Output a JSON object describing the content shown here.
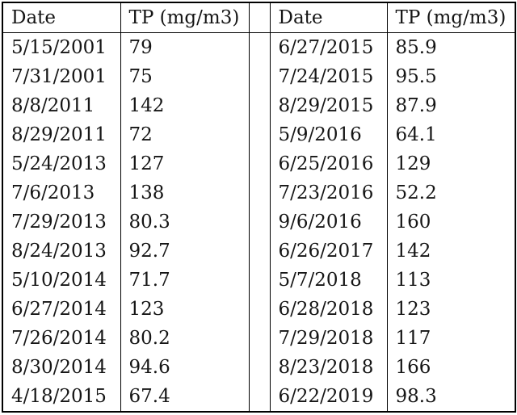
{
  "page": {
    "background_color": "#ffffff",
    "border_color": "#000000",
    "text_color": "#151515"
  },
  "table": {
    "left": {
      "header": {
        "date": "Date",
        "tp": "TP (mg/m3)"
      },
      "rows": [
        {
          "date": "5/15/2001",
          "tp": "79"
        },
        {
          "date": "7/31/2001",
          "tp": "75"
        },
        {
          "date": "8/8/2011",
          "tp": "142"
        },
        {
          "date": "8/29/2011",
          "tp": "72"
        },
        {
          "date": "5/24/2013",
          "tp": "127"
        },
        {
          "date": "7/6/2013",
          "tp": "138"
        },
        {
          "date": "7/29/2013",
          "tp": "80.3"
        },
        {
          "date": "8/24/2013",
          "tp": "92.7"
        },
        {
          "date": "5/10/2014",
          "tp": "71.7"
        },
        {
          "date": "6/27/2014",
          "tp": "123"
        },
        {
          "date": "7/26/2014",
          "tp": "80.2"
        },
        {
          "date": "8/30/2014",
          "tp": "94.6"
        },
        {
          "date": "4/18/2015",
          "tp": "67.4"
        }
      ]
    },
    "right": {
      "header": {
        "date": "Date",
        "tp": "TP (mg/m3)"
      },
      "rows": [
        {
          "date": "6/27/2015",
          "tp": "85.9"
        },
        {
          "date": "7/24/2015",
          "tp": "95.5"
        },
        {
          "date": "8/29/2015",
          "tp": "87.9"
        },
        {
          "date": "5/9/2016",
          "tp": "64.1"
        },
        {
          "date": "6/25/2016",
          "tp": "129"
        },
        {
          "date": "7/23/2016",
          "tp": "52.2"
        },
        {
          "date": "9/6/2016",
          "tp": "160"
        },
        {
          "date": "6/26/2017",
          "tp": "142"
        },
        {
          "date": "5/7/2018",
          "tp": "113"
        },
        {
          "date": "6/28/2018",
          "tp": "123"
        },
        {
          "date": "7/29/2018",
          "tp": "117"
        },
        {
          "date": "8/23/2018",
          "tp": "166"
        },
        {
          "date": "6/22/2019",
          "tp": "98.3"
        }
      ]
    }
  }
}
